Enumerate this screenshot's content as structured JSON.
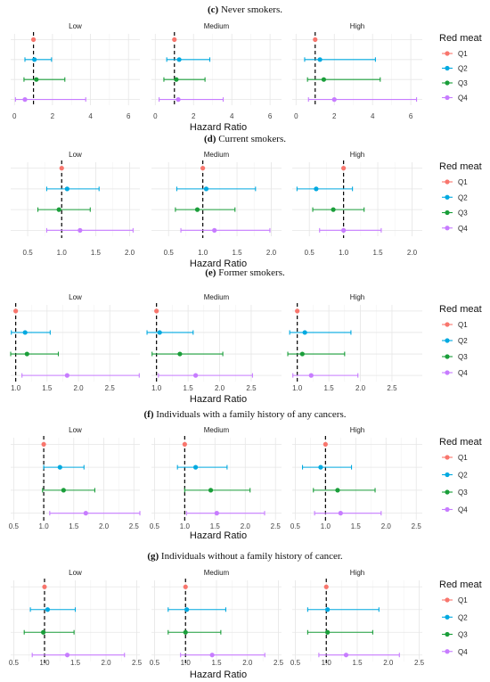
{
  "legend": {
    "title": "Red meat",
    "items": [
      {
        "label": "Q1",
        "color": "#F8766D"
      },
      {
        "label": "Q2",
        "color": "#00A9E0"
      },
      {
        "label": "Q3",
        "color": "#1A9E3A"
      },
      {
        "label": "Q4",
        "color": "#C77CFF"
      }
    ]
  },
  "facet_labels": [
    "Low",
    "Medium",
    "High"
  ],
  "x_axis_label": "Hazard Ratio",
  "chart_data": [
    {
      "type": "forest",
      "caption_label": "(c)",
      "caption_text": "Never smokers.",
      "xlabel": "Hazard Ratio",
      "xlim": [
        -0.2,
        6.6
      ],
      "ticks": [
        0,
        2,
        4,
        6
      ],
      "tick_labels": [
        "0",
        "2",
        "4",
        "6"
      ],
      "facets": [
        {
          "name": "Low",
          "rows": [
            {
              "group": "Q1",
              "hr": 1.0,
              "lo": 1.0,
              "hi": 1.0
            },
            {
              "group": "Q2",
              "hr": 1.05,
              "lo": 0.55,
              "hi": 1.95
            },
            {
              "group": "Q3",
              "hr": 1.15,
              "lo": 0.5,
              "hi": 2.65
            },
            {
              "group": "Q4",
              "hr": 0.55,
              "lo": 0.05,
              "hi": 3.75
            }
          ]
        },
        {
          "name": "Medium",
          "rows": [
            {
              "group": "Q1",
              "hr": 1.0,
              "lo": 1.0,
              "hi": 1.0
            },
            {
              "group": "Q2",
              "hr": 1.25,
              "lo": 0.6,
              "hi": 2.85
            },
            {
              "group": "Q3",
              "hr": 1.1,
              "lo": 0.45,
              "hi": 2.6
            },
            {
              "group": "Q4",
              "hr": 1.2,
              "lo": 0.2,
              "hi": 3.55
            }
          ]
        },
        {
          "name": "High",
          "rows": [
            {
              "group": "Q1",
              "hr": 1.0,
              "lo": 1.0,
              "hi": 1.0
            },
            {
              "group": "Q2",
              "hr": 1.25,
              "lo": 0.45,
              "hi": 4.15
            },
            {
              "group": "Q3",
              "hr": 1.45,
              "lo": 0.6,
              "hi": 4.4
            },
            {
              "group": "Q4",
              "hr": 2.0,
              "lo": 0.65,
              "hi": 6.3
            }
          ]
        }
      ]
    },
    {
      "type": "forest",
      "caption_label": "(d)",
      "caption_text": "Current smokers.",
      "xlabel": "Hazard Ratio",
      "xlim": [
        0.25,
        2.15
      ],
      "ticks": [
        0.5,
        1.0,
        1.5,
        2.0
      ],
      "tick_labels": [
        "0.5",
        "1.0",
        "1.5",
        "2.0"
      ],
      "facets": [
        {
          "name": "Low",
          "rows": [
            {
              "group": "Q1",
              "hr": 1.0,
              "lo": 1.0,
              "hi": 1.0
            },
            {
              "group": "Q2",
              "hr": 1.08,
              "lo": 0.78,
              "hi": 1.55
            },
            {
              "group": "Q3",
              "hr": 0.96,
              "lo": 0.65,
              "hi": 1.42
            },
            {
              "group": "Q4",
              "hr": 1.27,
              "lo": 0.78,
              "hi": 2.05
            }
          ]
        },
        {
          "name": "Medium",
          "rows": [
            {
              "group": "Q1",
              "hr": 1.0,
              "lo": 1.0,
              "hi": 1.0
            },
            {
              "group": "Q2",
              "hr": 1.05,
              "lo": 0.62,
              "hi": 1.77
            },
            {
              "group": "Q3",
              "hr": 0.92,
              "lo": 0.6,
              "hi": 1.47
            },
            {
              "group": "Q4",
              "hr": 1.17,
              "lo": 0.68,
              "hi": 1.98
            }
          ]
        },
        {
          "name": "High",
          "rows": [
            {
              "group": "Q1",
              "hr": 1.0,
              "lo": 1.0,
              "hi": 1.0
            },
            {
              "group": "Q2",
              "hr": 0.6,
              "lo": 0.32,
              "hi": 1.13
            },
            {
              "group": "Q3",
              "hr": 0.85,
              "lo": 0.55,
              "hi": 1.3
            },
            {
              "group": "Q4",
              "hr": 1.0,
              "lo": 0.65,
              "hi": 1.55
            }
          ]
        }
      ]
    },
    {
      "type": "forest",
      "caption_label": "(e)",
      "caption_text": "Former smokers.",
      "xlabel": "Hazard Ratio",
      "xlim": [
        0.92,
        2.98
      ],
      "ticks": [
        1.0,
        1.5,
        2.0,
        2.5
      ],
      "tick_labels": [
        "1.0",
        "1.5",
        "2.0",
        "2.5"
      ],
      "facets": [
        {
          "name": "Low",
          "rows": [
            {
              "group": "Q1",
              "hr": 1.0,
              "lo": 1.0,
              "hi": 1.0
            },
            {
              "group": "Q2",
              "hr": 1.15,
              "lo": 0.93,
              "hi": 1.55
            },
            {
              "group": "Q3",
              "hr": 1.18,
              "lo": 0.92,
              "hi": 1.68
            },
            {
              "group": "Q4",
              "hr": 1.82,
              "lo": 1.1,
              "hi": 2.97
            }
          ]
        },
        {
          "name": "Medium",
          "rows": [
            {
              "group": "Q1",
              "hr": 1.0,
              "lo": 1.0,
              "hi": 1.0
            },
            {
              "group": "Q2",
              "hr": 1.05,
              "lo": 0.85,
              "hi": 1.58
            },
            {
              "group": "Q3",
              "hr": 1.37,
              "lo": 0.93,
              "hi": 2.05
            },
            {
              "group": "Q4",
              "hr": 1.62,
              "lo": 1.03,
              "hi": 2.52
            }
          ]
        },
        {
          "name": "High",
          "rows": [
            {
              "group": "Q1",
              "hr": 1.0,
              "lo": 1.0,
              "hi": 1.0
            },
            {
              "group": "Q2",
              "hr": 1.12,
              "lo": 0.88,
              "hi": 1.85
            },
            {
              "group": "Q3",
              "hr": 1.08,
              "lo": 0.85,
              "hi": 1.75
            },
            {
              "group": "Q4",
              "hr": 1.22,
              "lo": 0.93,
              "hi": 1.96
            }
          ]
        }
      ]
    },
    {
      "type": "forest",
      "caption_label": "(f)",
      "caption_text": "Individuals with a family history of any cancers.",
      "xlabel": "Hazard Ratio",
      "xlim": [
        0.45,
        2.6
      ],
      "ticks": [
        0.5,
        1.0,
        1.5,
        2.0,
        2.5
      ],
      "tick_labels": [
        "0.5",
        "1.0",
        "1.5",
        "2.0",
        "2.5"
      ],
      "facets": [
        {
          "name": "Low",
          "rows": [
            {
              "group": "Q1",
              "hr": 1.0,
              "lo": 1.0,
              "hi": 1.0
            },
            {
              "group": "Q2",
              "hr": 1.27,
              "lo": 1.0,
              "hi": 1.67
            },
            {
              "group": "Q3",
              "hr": 1.33,
              "lo": 0.98,
              "hi": 1.85
            },
            {
              "group": "Q4",
              "hr": 1.7,
              "lo": 1.1,
              "hi": 2.6
            }
          ]
        },
        {
          "name": "Medium",
          "rows": [
            {
              "group": "Q1",
              "hr": 1.0,
              "lo": 1.0,
              "hi": 1.0
            },
            {
              "group": "Q2",
              "hr": 1.18,
              "lo": 0.88,
              "hi": 1.7
            },
            {
              "group": "Q3",
              "hr": 1.43,
              "lo": 1.0,
              "hi": 2.08
            },
            {
              "group": "Q4",
              "hr": 1.53,
              "lo": 1.03,
              "hi": 2.32
            }
          ]
        },
        {
          "name": "High",
          "rows": [
            {
              "group": "Q1",
              "hr": 1.0,
              "lo": 1.0,
              "hi": 1.0
            },
            {
              "group": "Q2",
              "hr": 0.92,
              "lo": 0.62,
              "hi": 1.43
            },
            {
              "group": "Q3",
              "hr": 1.2,
              "lo": 0.8,
              "hi": 1.82
            },
            {
              "group": "Q4",
              "hr": 1.25,
              "lo": 0.82,
              "hi": 1.92
            }
          ]
        }
      ]
    },
    {
      "type": "forest",
      "caption_label": "(g)",
      "caption_text": "Individuals without a family history of cancer.",
      "xlabel": "Hazard Ratio",
      "xlim": [
        0.45,
        2.55
      ],
      "ticks": [
        0.5,
        1.0,
        1.5,
        2.0,
        2.5
      ],
      "tick_labels": [
        "0.5",
        "1.0",
        "1.5",
        "2.0",
        "2.5"
      ],
      "facets": [
        {
          "name": "Low",
          "rows": [
            {
              "group": "Q1",
              "hr": 1.0,
              "lo": 1.0,
              "hi": 1.0
            },
            {
              "group": "Q2",
              "hr": 1.05,
              "lo": 0.77,
              "hi": 1.5
            },
            {
              "group": "Q3",
              "hr": 0.98,
              "lo": 0.67,
              "hi": 1.48
            },
            {
              "group": "Q4",
              "hr": 1.37,
              "lo": 0.8,
              "hi": 2.3
            }
          ]
        },
        {
          "name": "Medium",
          "rows": [
            {
              "group": "Q1",
              "hr": 1.0,
              "lo": 1.0,
              "hi": 1.0
            },
            {
              "group": "Q2",
              "hr": 1.02,
              "lo": 0.72,
              "hi": 1.65
            },
            {
              "group": "Q3",
              "hr": 1.0,
              "lo": 0.72,
              "hi": 1.57
            },
            {
              "group": "Q4",
              "hr": 1.43,
              "lo": 0.92,
              "hi": 2.28
            }
          ]
        },
        {
          "name": "High",
          "rows": [
            {
              "group": "Q1",
              "hr": 1.0,
              "lo": 1.0,
              "hi": 1.0
            },
            {
              "group": "Q2",
              "hr": 1.02,
              "lo": 0.7,
              "hi": 1.85
            },
            {
              "group": "Q3",
              "hr": 1.02,
              "lo": 0.7,
              "hi": 1.75
            },
            {
              "group": "Q4",
              "hr": 1.32,
              "lo": 0.88,
              "hi": 2.18
            }
          ]
        }
      ]
    }
  ]
}
